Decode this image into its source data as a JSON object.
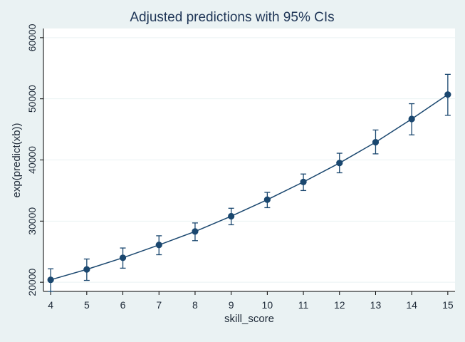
{
  "chart_data": {
    "type": "line",
    "title": "Adjusted predictions with 95% CIs",
    "xlabel": "skill_score",
    "ylabel": "exp(predict(xb))",
    "x": [
      4,
      5,
      6,
      7,
      8,
      9,
      10,
      11,
      12,
      13,
      14,
      15
    ],
    "series": [
      {
        "values": [
          20400,
          22100,
          24000,
          26100,
          28300,
          30800,
          33500,
          36400,
          39500,
          42900,
          46700,
          50700
        ],
        "ci_lower": [
          18500,
          20300,
          22300,
          24500,
          26800,
          29400,
          32200,
          35000,
          37900,
          41000,
          44100,
          47300
        ],
        "ci_upper": [
          22200,
          23800,
          25600,
          27600,
          29700,
          32100,
          34700,
          37700,
          41100,
          44900,
          49200,
          54000
        ]
      }
    ],
    "xlim": [
      3.8,
      15.2
    ],
    "ylim": [
      18500,
      61500
    ],
    "xticks": [
      "4",
      "5",
      "6",
      "7",
      "8",
      "9",
      "10",
      "11",
      "12",
      "13",
      "14",
      "15"
    ],
    "yticks": [
      "20000",
      "30000",
      "40000",
      "50000",
      "60000"
    ],
    "grid": true,
    "colors": {
      "series": "#1a476f",
      "background": "#eaf2f3",
      "plot_background": "#ffffff",
      "grid": "#eaf2f3",
      "text": "#1e2a38",
      "title": "#1e3556"
    }
  }
}
